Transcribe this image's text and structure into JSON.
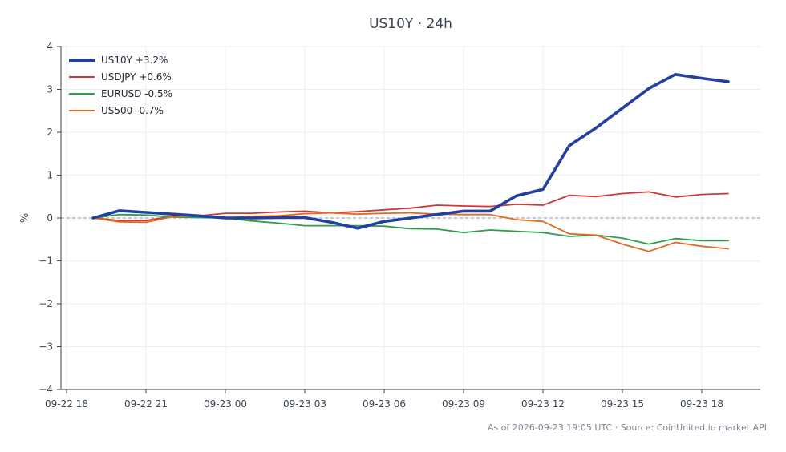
{
  "chart_data": {
    "type": "line",
    "title": "US10Y · 24h",
    "xlabel": "",
    "ylabel": "%",
    "ylim": [
      -4,
      4
    ],
    "yticks": [
      -4,
      -3,
      -2,
      -1,
      0,
      1,
      2,
      3,
      4
    ],
    "ytick_labels": [
      "−4",
      "−3",
      "−2",
      "−1",
      "0",
      "1",
      "2",
      "3",
      "4"
    ],
    "xtick_labels": [
      "09-22 18",
      "09-22 21",
      "09-23 00",
      "09-23 03",
      "09-23 06",
      "09-23 09",
      "09-23 12",
      "09-23 15",
      "09-23 18"
    ],
    "x": [
      "09-22 19",
      "09-22 20",
      "09-22 21",
      "09-22 22",
      "09-22 23",
      "09-23 00",
      "09-23 01",
      "09-23 02",
      "09-23 03",
      "09-23 04",
      "09-23 05",
      "09-23 06",
      "09-23 07",
      "09-23 08",
      "09-23 09",
      "09-23 10",
      "09-23 11",
      "09-23 12",
      "09-23 13",
      "09-23 14",
      "09-23 15",
      "09-23 16",
      "09-23 17",
      "09-23 18",
      "09-23 19"
    ],
    "series": [
      {
        "name": "US10Y +3.2%",
        "color": "#2340a0",
        "values": [
          0.0,
          0.17,
          0.13,
          0.09,
          0.05,
          0.0,
          0.0,
          0.01,
          0.01,
          -0.1,
          -0.24,
          -0.08,
          0.0,
          0.08,
          0.16,
          0.16,
          0.52,
          0.67,
          1.69,
          2.1,
          2.56,
          3.02,
          3.35,
          3.26,
          3.18
        ]
      },
      {
        "name": "USDJPY +0.6%",
        "color": "#d03838",
        "values": [
          0.0,
          -0.06,
          -0.06,
          0.04,
          0.05,
          0.11,
          0.11,
          0.14,
          0.16,
          0.12,
          0.15,
          0.19,
          0.23,
          0.3,
          0.28,
          0.27,
          0.32,
          0.3,
          0.53,
          0.5,
          0.57,
          0.61,
          0.49,
          0.55,
          0.57
        ]
      },
      {
        "name": "EURUSD -0.5%",
        "color": "#2e9e4f",
        "values": [
          0.0,
          0.08,
          0.07,
          0.02,
          0.01,
          0.0,
          -0.07,
          -0.12,
          -0.18,
          -0.18,
          -0.18,
          -0.19,
          -0.25,
          -0.26,
          -0.34,
          -0.28,
          -0.31,
          -0.34,
          -0.43,
          -0.4,
          -0.47,
          -0.61,
          -0.48,
          -0.53,
          -0.53
        ]
      },
      {
        "name": "US500 -0.7%",
        "color": "#e06a1e",
        "values": [
          0.0,
          -0.09,
          -0.1,
          0.03,
          0.05,
          0.0,
          0.04,
          0.05,
          0.1,
          0.12,
          0.09,
          0.11,
          0.12,
          0.09,
          0.08,
          0.08,
          -0.04,
          -0.08,
          -0.37,
          -0.4,
          -0.61,
          -0.78,
          -0.57,
          -0.66,
          -0.72
        ]
      }
    ],
    "legend": "top-left",
    "grid": true,
    "zero_line": true
  },
  "footer_text": "As of 2026-09-23 19:05 UTC · Source: CoinUnited.io market API"
}
